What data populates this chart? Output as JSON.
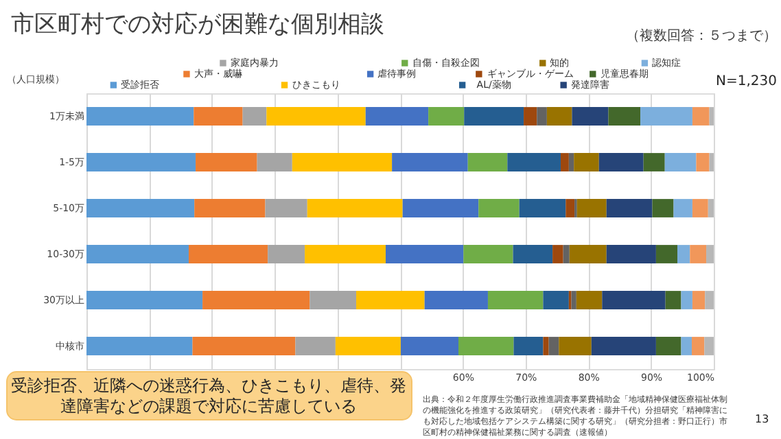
{
  "chart_data": {
    "type": "bar",
    "orientation": "horizontal",
    "stacked": true,
    "title": "市区町村での対応が困難な個別相談",
    "subtitle": "（複数回答：５つまで）",
    "ylabel": "（人口規模）",
    "categories": [
      "1万未満",
      "1-5万",
      "5-10万",
      "10-30万",
      "30万以上",
      "中核市"
    ],
    "series": [
      {
        "name": "受診拒否",
        "color": "#5b9bd5",
        "values": [
          17.1,
          17.4,
          17.2,
          16.3,
          18.5,
          16.9
        ]
      },
      {
        "name": "大声・威嚇",
        "color": "#ed7d31",
        "values": [
          7.8,
          9.8,
          11.3,
          12.6,
          17.1,
          16.4
        ]
      },
      {
        "name": "家庭内暴力",
        "color": "#a5a5a5",
        "values": [
          3.8,
          5.6,
          6.7,
          5.9,
          7.4,
          6.4
        ]
      },
      {
        "name": "ひきこもり",
        "color": "#ffc000",
        "values": [
          15.8,
          15.9,
          15.2,
          12.9,
          10.9,
          10.4
        ]
      },
      {
        "name": "虐待事例",
        "color": "#4472c4",
        "values": [
          10.0,
          12.1,
          12.1,
          12.4,
          10.1,
          9.2
        ]
      },
      {
        "name": "自傷・自殺企図",
        "color": "#70ad47",
        "values": [
          5.7,
          6.3,
          6.5,
          7.9,
          8.8,
          8.8
        ]
      },
      {
        "name": "AL/薬物",
        "color": "#255e91",
        "values": [
          9.5,
          8.5,
          7.4,
          6.3,
          4.1,
          4.7
        ]
      },
      {
        "name": "ギャンブル・ゲーム",
        "color": "#9e480e",
        "values": [
          2.1,
          1.3,
          1.4,
          1.7,
          0.4,
          0.9
        ]
      },
      {
        "color": "#636363",
        "values": [
          1.6,
          0.8,
          0.4,
          1.0,
          0.8,
          1.6
        ]
      },
      {
        "name": "知的",
        "color": "#997300",
        "values": [
          4.0,
          4.0,
          4.7,
          5.9,
          4.1,
          5.2
        ]
      },
      {
        "name": "発達障害",
        "color": "#264478",
        "values": [
          5.8,
          7.1,
          7.3,
          7.9,
          10.1,
          10.3
        ]
      },
      {
        "name": "児童思春期",
        "color": "#43682b",
        "values": [
          5.1,
          3.4,
          3.4,
          3.4,
          2.5,
          4.0
        ]
      },
      {
        "name": "認知症",
        "color": "#7cafdd",
        "values": [
          8.3,
          5.0,
          3.0,
          2.0,
          1.8,
          1.7
        ]
      },
      {
        "color": "#f1975a",
        "values": [
          2.7,
          2.1,
          2.5,
          2.6,
          2.0,
          2.0
        ]
      },
      {
        "color": "#b7b7b7",
        "values": [
          0.7,
          0.7,
          0.9,
          1.2,
          1.4,
          1.5
        ]
      }
    ],
    "xlim": [
      0,
      100
    ],
    "xticks": [
      {
        "value": 0,
        "label": null
      },
      {
        "value": 10,
        "label": null
      },
      {
        "value": 20,
        "label": null
      },
      {
        "value": 30,
        "label": null
      },
      {
        "value": 40,
        "label": null
      },
      {
        "value": 50,
        "label": null
      },
      {
        "value": 60,
        "label": "60%"
      },
      {
        "value": 70,
        "label": "70%"
      },
      {
        "value": 80,
        "label": "80%"
      },
      {
        "value": 90,
        "label": "90%"
      },
      {
        "value": 100,
        "label": "100%"
      }
    ],
    "grid": "x",
    "legend": "top",
    "annotations": [
      "N=1,230",
      "受診拒否、近隣への迷惑行為、ひきこもり、虐待、発達障害などの課題で対応に苦慮している",
      "出典：令和２年度厚生労働行政推進調査事業費補助金「地域精神保健医療福祉体制の機能強化を推進する政策研究」（研究代表者：藤井千代）分担研究「精神障害にも対応した地域包括ケアシステム構築に関する研究」（研究分担者：野口正行）市区町村の精神保健福祉業務に関する調査（速報値）",
      "13"
    ]
  }
}
